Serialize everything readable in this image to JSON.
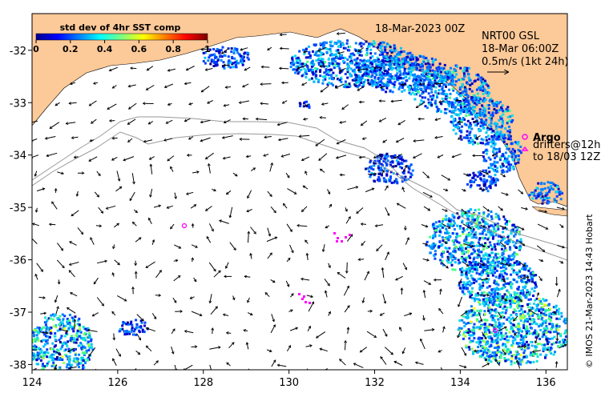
{
  "map": {
    "lon_range": [
      124,
      136.5
    ],
    "lat_range": [
      -38.1,
      -31.3
    ],
    "x_ticks": [
      "124",
      "126",
      "128",
      "130",
      "132",
      "134",
      "136"
    ],
    "y_ticks": [
      "-32",
      "-33",
      "-34",
      "-35",
      "-36",
      "-37",
      "-38"
    ],
    "land_color": "#fcc998",
    "sea_color": "#ffffff",
    "arrow_color": "#000000",
    "argo_color": "#ff00ff"
  },
  "colorbar": {
    "title": "std dev of 4hr SST comp",
    "ticks": [
      "0",
      "0.2",
      "0.4",
      "0.6",
      "0.8",
      "1"
    ],
    "colormap": "jet"
  },
  "header": {
    "date": "18-Mar-2023 00Z",
    "product": "NRT00 GSL",
    "time": "18-Mar 06:00Z",
    "scale": "0.5m/s (1kt 24h)"
  },
  "legend": {
    "argo_label": "Argo",
    "drifters_line1": "drifters@12h",
    "drifters_line2": "to 18/03 12Z"
  },
  "credit": "© IMOS 21-Mar-2023 14:43 Hobart"
}
